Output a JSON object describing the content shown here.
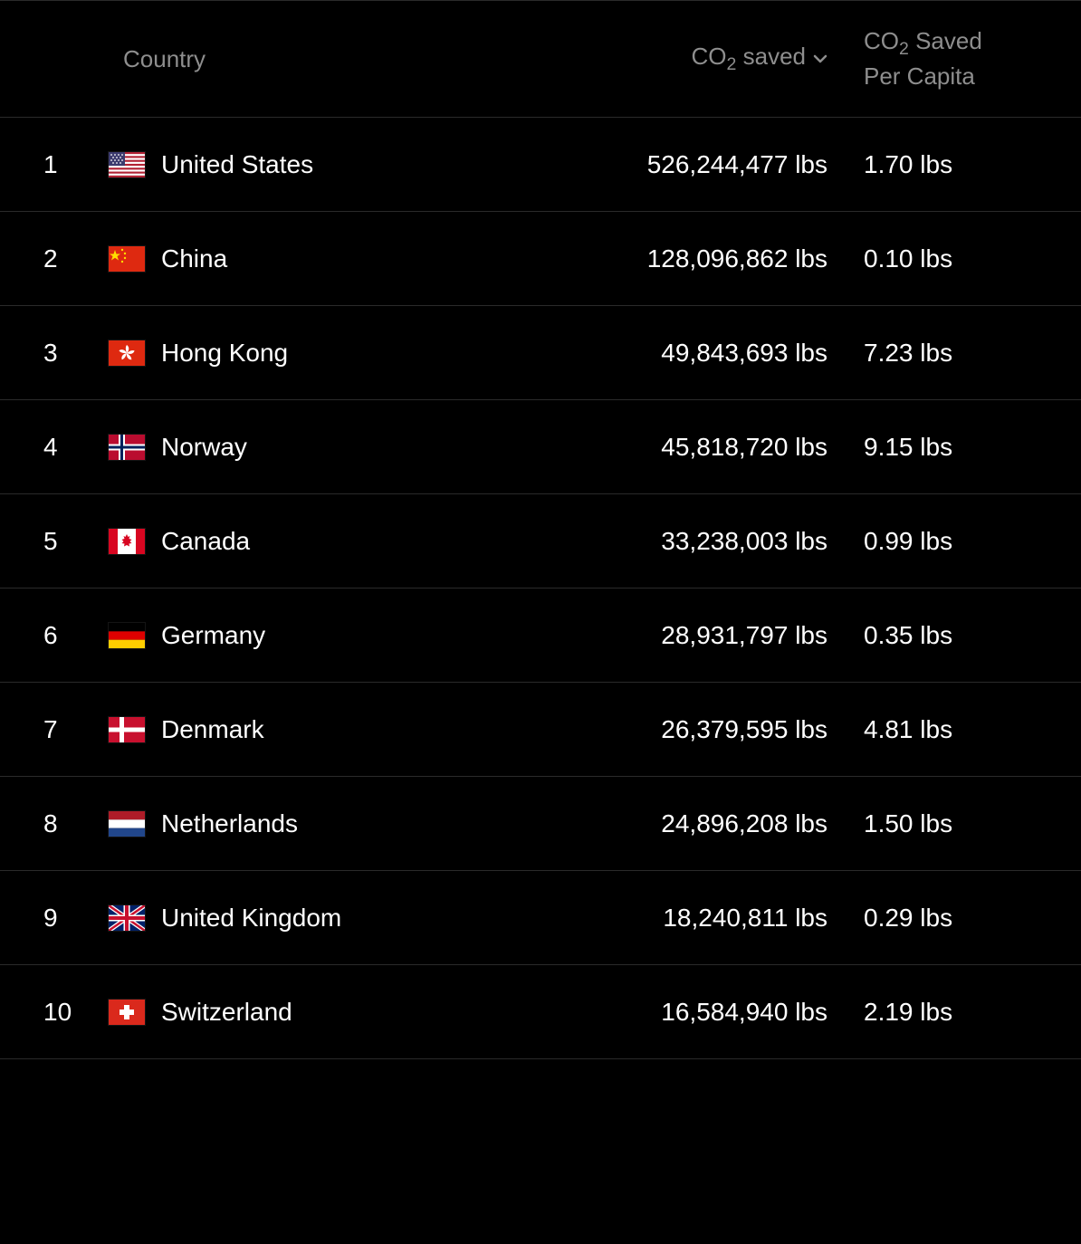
{
  "colors": {
    "background": "#000000",
    "text": "#ffffff",
    "muted_text": "#8e8e8e",
    "border": "#2a2a2a"
  },
  "typography": {
    "header_fontsize_pt": 20,
    "cell_fontsize_pt": 21,
    "font_family": "system-ui"
  },
  "table": {
    "sort_column": "co2_saved",
    "sort_direction": "desc",
    "columns": {
      "rank": "",
      "country": "Country",
      "co2_saved_html": "CO<sub>2</sub> saved",
      "co2_per_capita_html": "CO<sub>2</sub> Saved<br>Per Capita"
    },
    "rows": [
      {
        "rank": "1",
        "flag": "us",
        "country": "United States",
        "co2_saved": "526,244,477 lbs",
        "per_capita": "1.70 lbs"
      },
      {
        "rank": "2",
        "flag": "cn",
        "country": "China",
        "co2_saved": "128,096,862 lbs",
        "per_capita": "0.10 lbs"
      },
      {
        "rank": "3",
        "flag": "hk",
        "country": "Hong Kong",
        "co2_saved": "49,843,693 lbs",
        "per_capita": "7.23 lbs"
      },
      {
        "rank": "4",
        "flag": "no",
        "country": "Norway",
        "co2_saved": "45,818,720 lbs",
        "per_capita": "9.15 lbs"
      },
      {
        "rank": "5",
        "flag": "ca",
        "country": "Canada",
        "co2_saved": "33,238,003 lbs",
        "per_capita": "0.99 lbs"
      },
      {
        "rank": "6",
        "flag": "de",
        "country": "Germany",
        "co2_saved": "28,931,797 lbs",
        "per_capita": "0.35 lbs"
      },
      {
        "rank": "7",
        "flag": "dk",
        "country": "Denmark",
        "co2_saved": "26,379,595 lbs",
        "per_capita": "4.81 lbs"
      },
      {
        "rank": "8",
        "flag": "nl",
        "country": "Netherlands",
        "co2_saved": "24,896,208 lbs",
        "per_capita": "1.50 lbs"
      },
      {
        "rank": "9",
        "flag": "gb",
        "country": "United Kingdom",
        "co2_saved": "18,240,811 lbs",
        "per_capita": "0.29 lbs"
      },
      {
        "rank": "10",
        "flag": "ch",
        "country": "Switzerland",
        "co2_saved": "16,584,940 lbs",
        "per_capita": "2.19 lbs"
      }
    ]
  },
  "flags": {
    "us": "<svg viewBox='0 0 40 28'><rect width='40' height='28' fill='#b22234'/><g fill='#fff'><rect y='2.15' width='40' height='2.15'/><rect y='6.46' width='40' height='2.15'/><rect y='10.77' width='40' height='2.15'/><rect y='15.08' width='40' height='2.15'/><rect y='19.38' width='40' height='2.15'/><rect y='23.69' width='40' height='2.15'/></g><rect width='18' height='15.08' fill='#3c3b6e'/><g fill='#fff'><circle cx='3' cy='3' r='0.9'/><circle cx='7' cy='3' r='0.9'/><circle cx='11' cy='3' r='0.9'/><circle cx='15' cy='3' r='0.9'/><circle cx='5' cy='6' r='0.9'/><circle cx='9' cy='6' r='0.9'/><circle cx='13' cy='6' r='0.9'/><circle cx='3' cy='9' r='0.9'/><circle cx='7' cy='9' r='0.9'/><circle cx='11' cy='9' r='0.9'/><circle cx='15' cy='9' r='0.9'/><circle cx='5' cy='12' r='0.9'/><circle cx='9' cy='12' r='0.9'/><circle cx='13' cy='12' r='0.9'/></g></svg>",
    "cn": "<svg viewBox='0 0 40 28'><rect width='40' height='28' fill='#de2910'/><polygon points='7,4 8.5,8.5 13,8.5 9.5,11 11,15.5 7,12.8 3,15.5 4.5,11 1,8.5 5.5,8.5' fill='#ffde00'/><circle cx='15' cy='4' r='1.2' fill='#ffde00'/><circle cx='18' cy='8' r='1.2' fill='#ffde00'/><circle cx='18' cy='13' r='1.2' fill='#ffde00'/><circle cx='15' cy='17' r='1.2' fill='#ffde00'/></svg>",
    "hk": "<svg viewBox='0 0 40 28'><rect width='40' height='28' fill='#de2910'/><g transform='translate(20,14)' fill='#fff'><path d='M0,-9 C3,-7 3,-3 0,0 C-1,-3 -2,-6 0,-9' transform='rotate(0)'/><path d='M0,-9 C3,-7 3,-3 0,0 C-1,-3 -2,-6 0,-9' transform='rotate(72)'/><path d='M0,-9 C3,-7 3,-3 0,0 C-1,-3 -2,-6 0,-9' transform='rotate(144)'/><path d='M0,-9 C3,-7 3,-3 0,0 C-1,-3 -2,-6 0,-9' transform='rotate(216)'/><path d='M0,-9 C3,-7 3,-3 0,0 C-1,-3 -2,-6 0,-9' transform='rotate(288)'/></g></svg>",
    "no": "<svg viewBox='0 0 40 28'><rect width='40' height='28' fill='#ba0c2f'/><rect x='11' width='7' height='28' fill='#fff'/><rect y='10.5' width='40' height='7' fill='#fff'/><rect x='13' width='3' height='28' fill='#00205b'/><rect y='12.5' width='40' height='3' fill='#00205b'/></svg>",
    "ca": "<svg viewBox='0 0 40 28'><rect width='40' height='28' fill='#fff'/><rect width='10' height='28' fill='#d80621'/><rect x='30' width='10' height='28' fill='#d80621'/><path d='M20 6 l1.5 3 2-1 -1 3 3 1 -2 2 2 2 -3 0.5 0.5 3 -3-1.5 -3 1.5 0.5-3 -3-0.5 2-2 -2-2 3-1 -1-3 2 1 z' fill='#d80621'/></svg>",
    "de": "<svg viewBox='0 0 40 28'><rect width='40' height='9.33' fill='#000'/><rect y='9.33' width='40' height='9.33' fill='#dd0000'/><rect y='18.66' width='40' height='9.34' fill='#ffce00'/></svg>",
    "dk": "<svg viewBox='0 0 40 28'><rect width='40' height='28' fill='#c8102e'/><rect x='12' width='5' height='28' fill='#fff'/><rect y='11.5' width='40' height='5' fill='#fff'/></svg>",
    "nl": "<svg viewBox='0 0 40 28'><rect width='40' height='9.33' fill='#ae1c28'/><rect y='9.33' width='40' height='9.33' fill='#fff'/><rect y='18.66' width='40' height='9.34' fill='#21468b'/></svg>",
    "gb": "<svg viewBox='0 0 40 28'><rect width='40' height='28' fill='#012169'/><path d='M0,0 L40,28 M40,0 L0,28' stroke='#fff' stroke-width='5'/><path d='M0,0 L40,28 M40,0 L0,28' stroke='#c8102e' stroke-width='2.5'/><rect x='16.5' width='7' height='28' fill='#fff'/><rect y='10.5' width='40' height='7' fill='#fff'/><rect x='18' width='4' height='28' fill='#c8102e'/><rect y='12' width='40' height='4' fill='#c8102e'/></svg>",
    "ch": "<svg viewBox='0 0 40 28'><rect width='40' height='28' fill='#da291c'/><rect x='17' y='6' width='6' height='16' fill='#fff'/><rect x='12' y='11' width='16' height='6' fill='#fff'/></svg>"
  }
}
